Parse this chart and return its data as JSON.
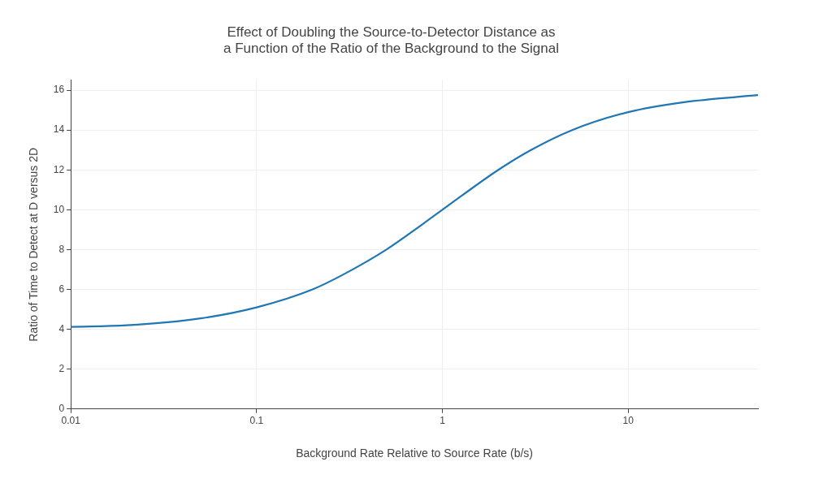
{
  "chart_data": {
    "type": "line",
    "title": "Effect of Doubling the Source-to-Detector Distance as a Function of the Ratio of the Background to the Signal",
    "xlabel": "Background Rate Relative to Source Rate (b/s)",
    "ylabel": "Ratio of Time to Detect at D versus 2D",
    "log": "x",
    "x": [
      0.01,
      0.02,
      0.05,
      0.1,
      0.2,
      0.3,
      0.5,
      1,
      2,
      3,
      5,
      10,
      20,
      50
    ],
    "series": [
      {
        "color": "#1f77b4",
        "values": [
          4.12,
          4.2,
          4.55,
          5.1,
          6.0,
          6.8,
          8.0,
          10,
          12,
          13.0,
          14.0,
          14.9,
          15.4,
          15.75
        ]
      }
    ],
    "xlim": [
      0.01,
      50
    ],
    "xticks": [
      0.01,
      0.1,
      1,
      10
    ],
    "ylim": [
      0,
      16.5
    ],
    "yticks": [
      0,
      2,
      4,
      6,
      8,
      10,
      12,
      14,
      16
    ],
    "grid": true,
    "legend": false,
    "marker": "none",
    "line_style": "solid"
  }
}
